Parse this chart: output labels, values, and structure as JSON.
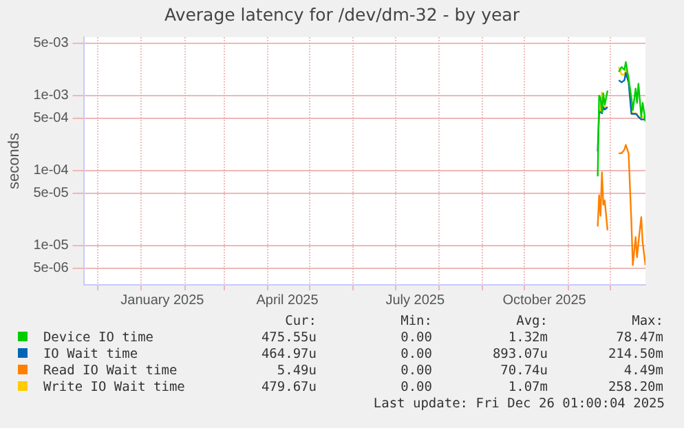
{
  "chart_data": {
    "type": "line",
    "title": "Average latency for /dev/dm-32 - by year",
    "ylabel": "seconds",
    "log": "y",
    "grid": true,
    "legend": "bottom",
    "marker": "none",
    "x": [
      "2025-11-22",
      "2025-11-23",
      "2025-11-24",
      "2025-11-25",
      "2025-11-26",
      "2025-11-27",
      "2025-11-29",
      "2025-12-03",
      "2025-12-07",
      "2025-12-09",
      "2025-12-11",
      "2025-12-12",
      "2025-12-14",
      "2025-12-16",
      "2025-12-17",
      "2025-12-19",
      "2025-12-20",
      "2025-12-21",
      "2025-12-23",
      "2025-12-24",
      "2025-12-26"
    ],
    "xlim": [
      "2024-11-21",
      "2025-12-26"
    ],
    "xticks": [
      {
        "value": "2024-12-01",
        "label": null
      },
      {
        "value": "2025-01-01",
        "label": null
      },
      {
        "value": "2025-01-16",
        "label": "January 2025"
      },
      {
        "value": "2025-02-01",
        "label": null
      },
      {
        "value": "2025-03-01",
        "label": null
      },
      {
        "value": "2025-04-01",
        "label": null
      },
      {
        "value": "2025-04-15",
        "label": "April 2025"
      },
      {
        "value": "2025-05-01",
        "label": null
      },
      {
        "value": "2025-06-01",
        "label": null
      },
      {
        "value": "2025-07-01",
        "label": null
      },
      {
        "value": "2025-07-15",
        "label": "July 2025"
      },
      {
        "value": "2025-08-01",
        "label": null
      },
      {
        "value": "2025-09-01",
        "label": null
      },
      {
        "value": "2025-10-01",
        "label": null
      },
      {
        "value": "2025-10-15",
        "label": "October 2025"
      },
      {
        "value": "2025-11-01",
        "label": null
      },
      {
        "value": "2025-12-01",
        "label": null
      }
    ],
    "ylim": [
      3e-06,
      0.006
    ],
    "yticks": [
      {
        "value": 5e-06,
        "label": "5e-06"
      },
      {
        "value": 1e-05,
        "label": "1e-05"
      },
      {
        "value": 5e-05,
        "label": "5e-05"
      },
      {
        "value": 0.0001,
        "label": "1e-04"
      },
      {
        "value": 0.0005,
        "label": "5e-04"
      },
      {
        "value": 0.001,
        "label": "1e-03"
      },
      {
        "value": 0.005,
        "label": "5e-03"
      }
    ],
    "series": [
      {
        "name": "Device IO time",
        "color": "#00cc00",
        "values": [
          8.4e-05,
          0.001,
          0.00093,
          0.0006,
          0.00107,
          0.00075,
          0.00116,
          null,
          0.00207,
          0.0024,
          0.0022,
          0.0028,
          0.00166,
          0.00093,
          0.00064,
          0.00124,
          0.0008,
          0.00144,
          0.00052,
          0.0008,
          0.00045
        ]
      },
      {
        "name": "IO Wait time",
        "color": "#0066b3",
        "values": [
          0.00018,
          0.0006,
          0.0006,
          0.00058,
          0.0007,
          0.00065,
          0.0007,
          null,
          0.0016,
          0.0015,
          0.0016,
          0.002,
          0.0015,
          0.00057,
          0.00057,
          0.00057,
          0.00055,
          0.00052,
          0.00048,
          0.00048,
          0.00048
        ]
      },
      {
        "name": "Read IO Wait time",
        "color": "#ff8000",
        "values": [
          1.8e-05,
          4.7e-05,
          2.5e-05,
          9.5e-05,
          3.5e-05,
          4e-05,
          1.6e-05,
          null,
          0.00017,
          0.00017,
          0.00019,
          0.00022,
          0.00017,
          2e-05,
          5.5e-06,
          1.3e-05,
          7e-06,
          1.1e-05,
          2.4e-05,
          1.1e-05,
          5.5e-06
        ]
      },
      {
        "name": "Write IO Wait time",
        "color": "#ffcc00",
        "values": [
          null,
          0.00065,
          0.0006,
          0.0011,
          0.00065,
          0.0007,
          0.0007,
          null,
          0.0024,
          0.0019,
          0.0019,
          0.0022,
          0.0018,
          0.0006,
          0.00058,
          0.00058,
          0.00057,
          0.00052,
          0.0005,
          0.00052,
          0.0005
        ]
      }
    ],
    "annotations": [
      "Cur:",
      "Min:",
      "Avg:",
      "Max:",
      "475.55u",
      "0.00",
      "1.32m",
      "78.47m",
      "464.97u",
      "0.00",
      "893.07u",
      "214.50m",
      "5.49u",
      "0.00",
      "70.74u",
      "4.49m",
      "479.67u",
      "0.00",
      "1.07m",
      "258.20m",
      "Last update: Fri Dec 26 01:00:04 2025"
    ]
  }
}
